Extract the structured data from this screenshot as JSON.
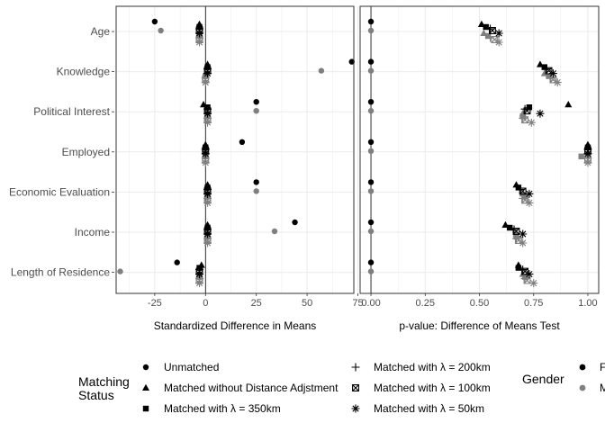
{
  "chart_data": {
    "type": "scatter",
    "categories": [
      "Age",
      "Knowledge",
      "Political Interest",
      "Employed",
      "Economic Evaluation",
      "Income",
      "Length of Residence"
    ],
    "panels": [
      {
        "id": "left",
        "xlabel": "Standardized Difference in Means",
        "xlim": [
          -44,
          73
        ],
        "xticks": [
          -25,
          0,
          25,
          50,
          75
        ],
        "xtick_labels": [
          "-25",
          "0",
          "25",
          "50",
          "75"
        ],
        "reference_line": 0,
        "series": [
          {
            "status": "unmatched",
            "gender": "female",
            "values": [
              -25,
              72,
              25,
              18,
              25,
              44,
              -14
            ]
          },
          {
            "status": "unmatched",
            "gender": "male",
            "values": [
              -22,
              57,
              25,
              0,
              25,
              34,
              -42
            ]
          },
          {
            "status": "no_distance",
            "gender": "female",
            "values": [
              -3,
              1,
              -1,
              0,
              1,
              1,
              -2
            ]
          },
          {
            "status": "no_distance",
            "gender": "male",
            "values": [
              -3,
              0,
              1,
              0,
              1,
              1,
              -3
            ]
          },
          {
            "status": "350km",
            "gender": "female",
            "values": [
              -3,
              1,
              1,
              0,
              1,
              1,
              -3
            ]
          },
          {
            "status": "350km",
            "gender": "male",
            "values": [
              -3,
              0,
              1,
              0,
              1,
              1,
              -3
            ]
          },
          {
            "status": "200km",
            "gender": "female",
            "values": [
              -3,
              1,
              1,
              0,
              1,
              1,
              -3
            ]
          },
          {
            "status": "200km",
            "gender": "male",
            "values": [
              -3,
              0,
              1,
              0,
              1,
              1,
              -3
            ]
          },
          {
            "status": "100km",
            "gender": "female",
            "values": [
              -3,
              1,
              1,
              0,
              1,
              1,
              -3
            ]
          },
          {
            "status": "100km",
            "gender": "male",
            "values": [
              -3,
              0,
              1,
              0,
              1,
              1,
              -3
            ]
          },
          {
            "status": "50km",
            "gender": "female",
            "values": [
              -3,
              1,
              1,
              0,
              1,
              1,
              -3
            ]
          },
          {
            "status": "50km",
            "gender": "male",
            "values": [
              -3,
              0,
              1,
              0,
              1,
              1,
              -3
            ]
          }
        ]
      },
      {
        "id": "right",
        "xlabel": "p-value: Difference of Means Test",
        "xlim": [
          -0.05,
          1.05
        ],
        "xticks": [
          0,
          0.25,
          0.5,
          0.75,
          1.0
        ],
        "xtick_labels": [
          "0.00",
          "0.25",
          "0.50",
          "0.75",
          "1.00"
        ],
        "reference_line": 0,
        "series": [
          {
            "status": "unmatched",
            "gender": "female",
            "values": [
              0.0,
              0.0,
              0.0,
              0.0,
              0.0,
              0.0,
              0.0
            ]
          },
          {
            "status": "unmatched",
            "gender": "male",
            "values": [
              0.0,
              0.0,
              0.0,
              0.0,
              0.0,
              0.0,
              0.0
            ]
          },
          {
            "status": "no_distance",
            "gender": "female",
            "values": [
              0.51,
              0.78,
              0.91,
              1.0,
              0.67,
              0.62,
              0.68
            ]
          },
          {
            "status": "no_distance",
            "gender": "male",
            "values": [
              0.52,
              0.8,
              0.7,
              1.0,
              0.7,
              0.67,
              0.7
            ]
          },
          {
            "status": "350km",
            "gender": "female",
            "values": [
              0.53,
              0.8,
              0.73,
              1.0,
              0.68,
              0.64,
              0.68
            ]
          },
          {
            "status": "350km",
            "gender": "male",
            "values": [
              0.54,
              0.82,
              0.7,
              0.97,
              0.71,
              0.67,
              0.71
            ]
          },
          {
            "status": "200km",
            "gender": "female",
            "values": [
              0.55,
              0.81,
              0.71,
              1.0,
              0.69,
              0.66,
              0.7
            ]
          },
          {
            "status": "200km",
            "gender": "male",
            "values": [
              0.55,
              0.83,
              0.7,
              1.0,
              0.7,
              0.67,
              0.71
            ]
          },
          {
            "status": "100km",
            "gender": "female",
            "values": [
              0.56,
              0.82,
              0.72,
              1.0,
              0.7,
              0.67,
              0.71
            ]
          },
          {
            "status": "100km",
            "gender": "male",
            "values": [
              0.57,
              0.84,
              0.71,
              1.0,
              0.71,
              0.68,
              0.72
            ]
          },
          {
            "status": "50km",
            "gender": "female",
            "values": [
              0.59,
              0.84,
              0.78,
              1.0,
              0.73,
              0.7,
              0.73
            ]
          },
          {
            "status": "50km",
            "gender": "male",
            "values": [
              0.59,
              0.86,
              0.74,
              1.0,
              0.73,
              0.7,
              0.75
            ]
          }
        ]
      }
    ],
    "legend": {
      "placement": "bottom",
      "status_title": "Matching Status",
      "status_title_lines": [
        "Matching",
        "Status"
      ],
      "status_items": [
        {
          "key": "unmatched",
          "label": "Unmatched",
          "shape": "circle"
        },
        {
          "key": "no_distance",
          "label": "Matched without Distance Adjstment",
          "shape": "triangle"
        },
        {
          "key": "350km",
          "label": "Matched with  λ  = 350km",
          "shape": "square"
        },
        {
          "key": "200km",
          "label": "Matched with  λ  = 200km",
          "shape": "plus"
        },
        {
          "key": "100km",
          "label": "Matched with  λ  = 100km",
          "shape": "square-x"
        },
        {
          "key": "50km",
          "label": "Matched with  λ  = 50km",
          "shape": "asterisk"
        }
      ],
      "gender_title": "Gender",
      "gender_items": [
        {
          "key": "female",
          "label": "Female",
          "color": "#000000"
        },
        {
          "key": "male",
          "label": "Male",
          "color": "#7f7f7f"
        }
      ]
    },
    "grid": true,
    "colors": {
      "female": "#000000",
      "male": "#7f7f7f",
      "grid": "#ebebeb",
      "frame": "#333333"
    }
  }
}
